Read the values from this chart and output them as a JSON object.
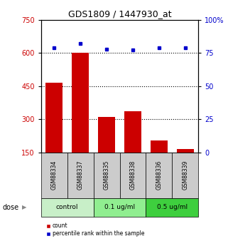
{
  "title": "GDS1809 / 1447930_at",
  "samples": [
    "GSM88334",
    "GSM88337",
    "GSM88335",
    "GSM88338",
    "GSM88336",
    "GSM88339"
  ],
  "counts": [
    465,
    600,
    310,
    335,
    205,
    165
  ],
  "percentiles": [
    79,
    82,
    78,
    77,
    79,
    79
  ],
  "groups": [
    {
      "label": "control",
      "indices": [
        0,
        1
      ]
    },
    {
      "label": "0.1 ug/ml",
      "indices": [
        2,
        3
      ]
    },
    {
      "label": "0.5 ug/ml",
      "indices": [
        4,
        5
      ]
    }
  ],
  "group_colors": [
    "#c8efc8",
    "#90ee90",
    "#3ecf3e"
  ],
  "bar_color": "#cc0000",
  "dot_color": "#0000cc",
  "bar_bottom": 150,
  "left_ylim": [
    150,
    750
  ],
  "right_ylim": [
    0,
    100
  ],
  "left_yticks": [
    150,
    300,
    450,
    600,
    750
  ],
  "right_yticks": [
    0,
    25,
    50,
    75,
    100
  ],
  "left_ytick_color": "#cc0000",
  "right_ytick_color": "#0000cc",
  "hline_values": [
    300,
    450,
    600
  ],
  "sample_box_color": "#cccccc",
  "figsize": [
    3.21,
    3.45
  ],
  "dpi": 100
}
